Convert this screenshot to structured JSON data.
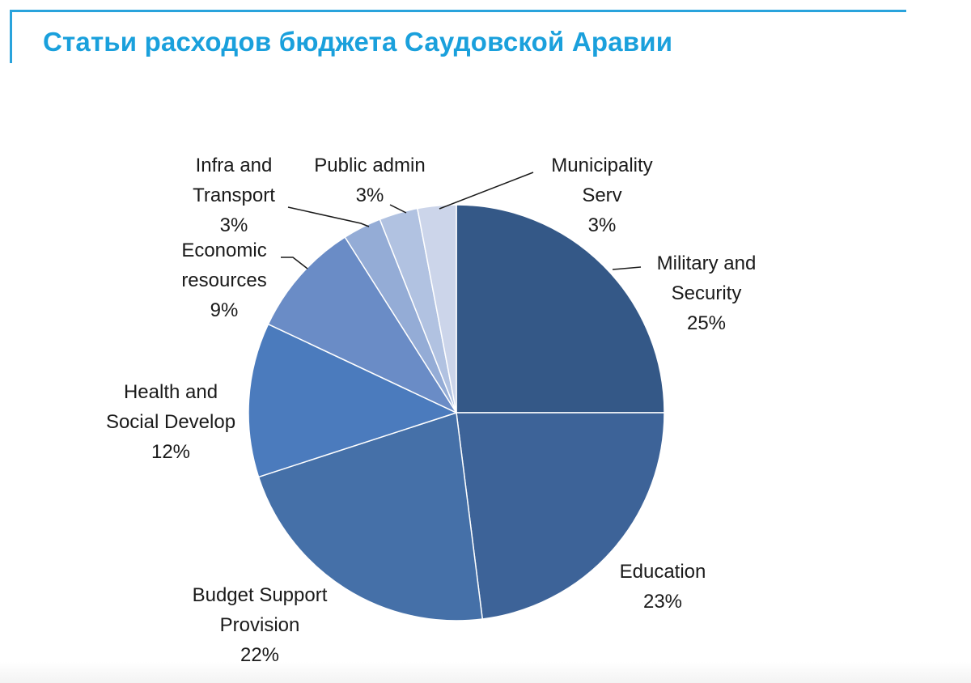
{
  "title": "Статьи расходов бюджета Саудовской Аравии",
  "chart_data": {
    "type": "pie",
    "title": "Статьи расходов бюджета Саудовской Аравии",
    "start_angle_deg": 0,
    "direction": "clockwise",
    "slices": [
      {
        "name": "Military and Security",
        "label_lines": [
          "Military and",
          "Security",
          "25%"
        ],
        "value": 25,
        "color": "#345887"
      },
      {
        "name": "Education",
        "label_lines": [
          "Education",
          "23%"
        ],
        "value": 23,
        "color": "#3d6398"
      },
      {
        "name": "Budget Support Provision",
        "label_lines": [
          "Budget Support",
          "Provision",
          "22%"
        ],
        "value": 22,
        "color": "#4570a8"
      },
      {
        "name": "Health and Social Develop",
        "label_lines": [
          "Health and",
          "Social Develop",
          "12%"
        ],
        "value": 12,
        "color": "#4b7bbd"
      },
      {
        "name": "Economic resources",
        "label_lines": [
          "Economic",
          "resources",
          "9%"
        ],
        "value": 9,
        "color": "#6a8cc6"
      },
      {
        "name": "Infra and Transport",
        "label_lines": [
          "Infra and",
          "Transport",
          "3%"
        ],
        "value": 3,
        "color": "#94acd6"
      },
      {
        "name": "Public admin",
        "label_lines": [
          "Public admin",
          "3%"
        ],
        "value": 3,
        "color": "#b1c2e1"
      },
      {
        "name": "Municipality Serv",
        "label_lines": [
          "Municipality",
          "Serv",
          "3%"
        ],
        "value": 3,
        "color": "#ccd5ea"
      }
    ]
  }
}
